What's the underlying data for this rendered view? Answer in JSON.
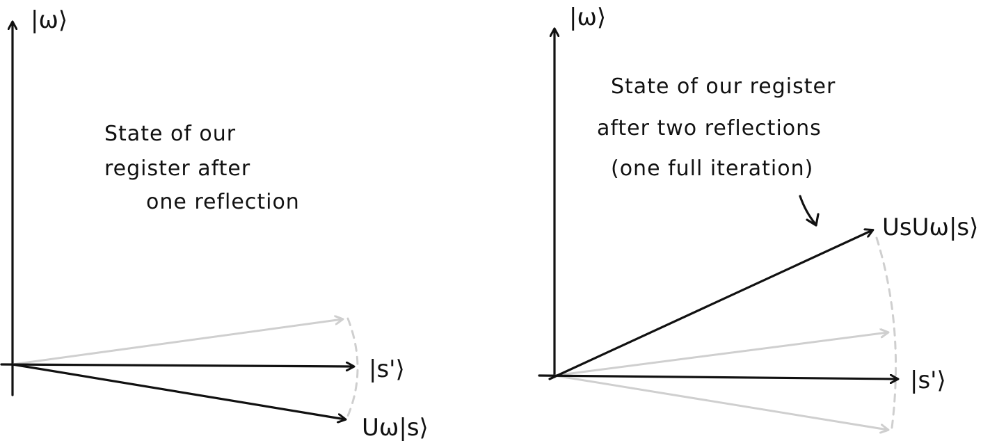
{
  "left_panel": {
    "axis_vertical_label": "|ω⟩",
    "axis_horizontal_label": "|s'⟩",
    "reflected_vector_label": "Uω|s⟩",
    "note_lines": [
      "State of our",
      "register after",
      "one reflection"
    ]
  },
  "right_panel": {
    "axis_vertical_label": "|ω⟩",
    "axis_horizontal_label": "|s'⟩",
    "result_vector_label": "UsUω|s⟩",
    "note_lines": [
      "State of our register",
      "after two reflections",
      "(one full iteration)"
    ]
  },
  "colors": {
    "ink": "#111111",
    "faded": "#cfcfcf"
  }
}
